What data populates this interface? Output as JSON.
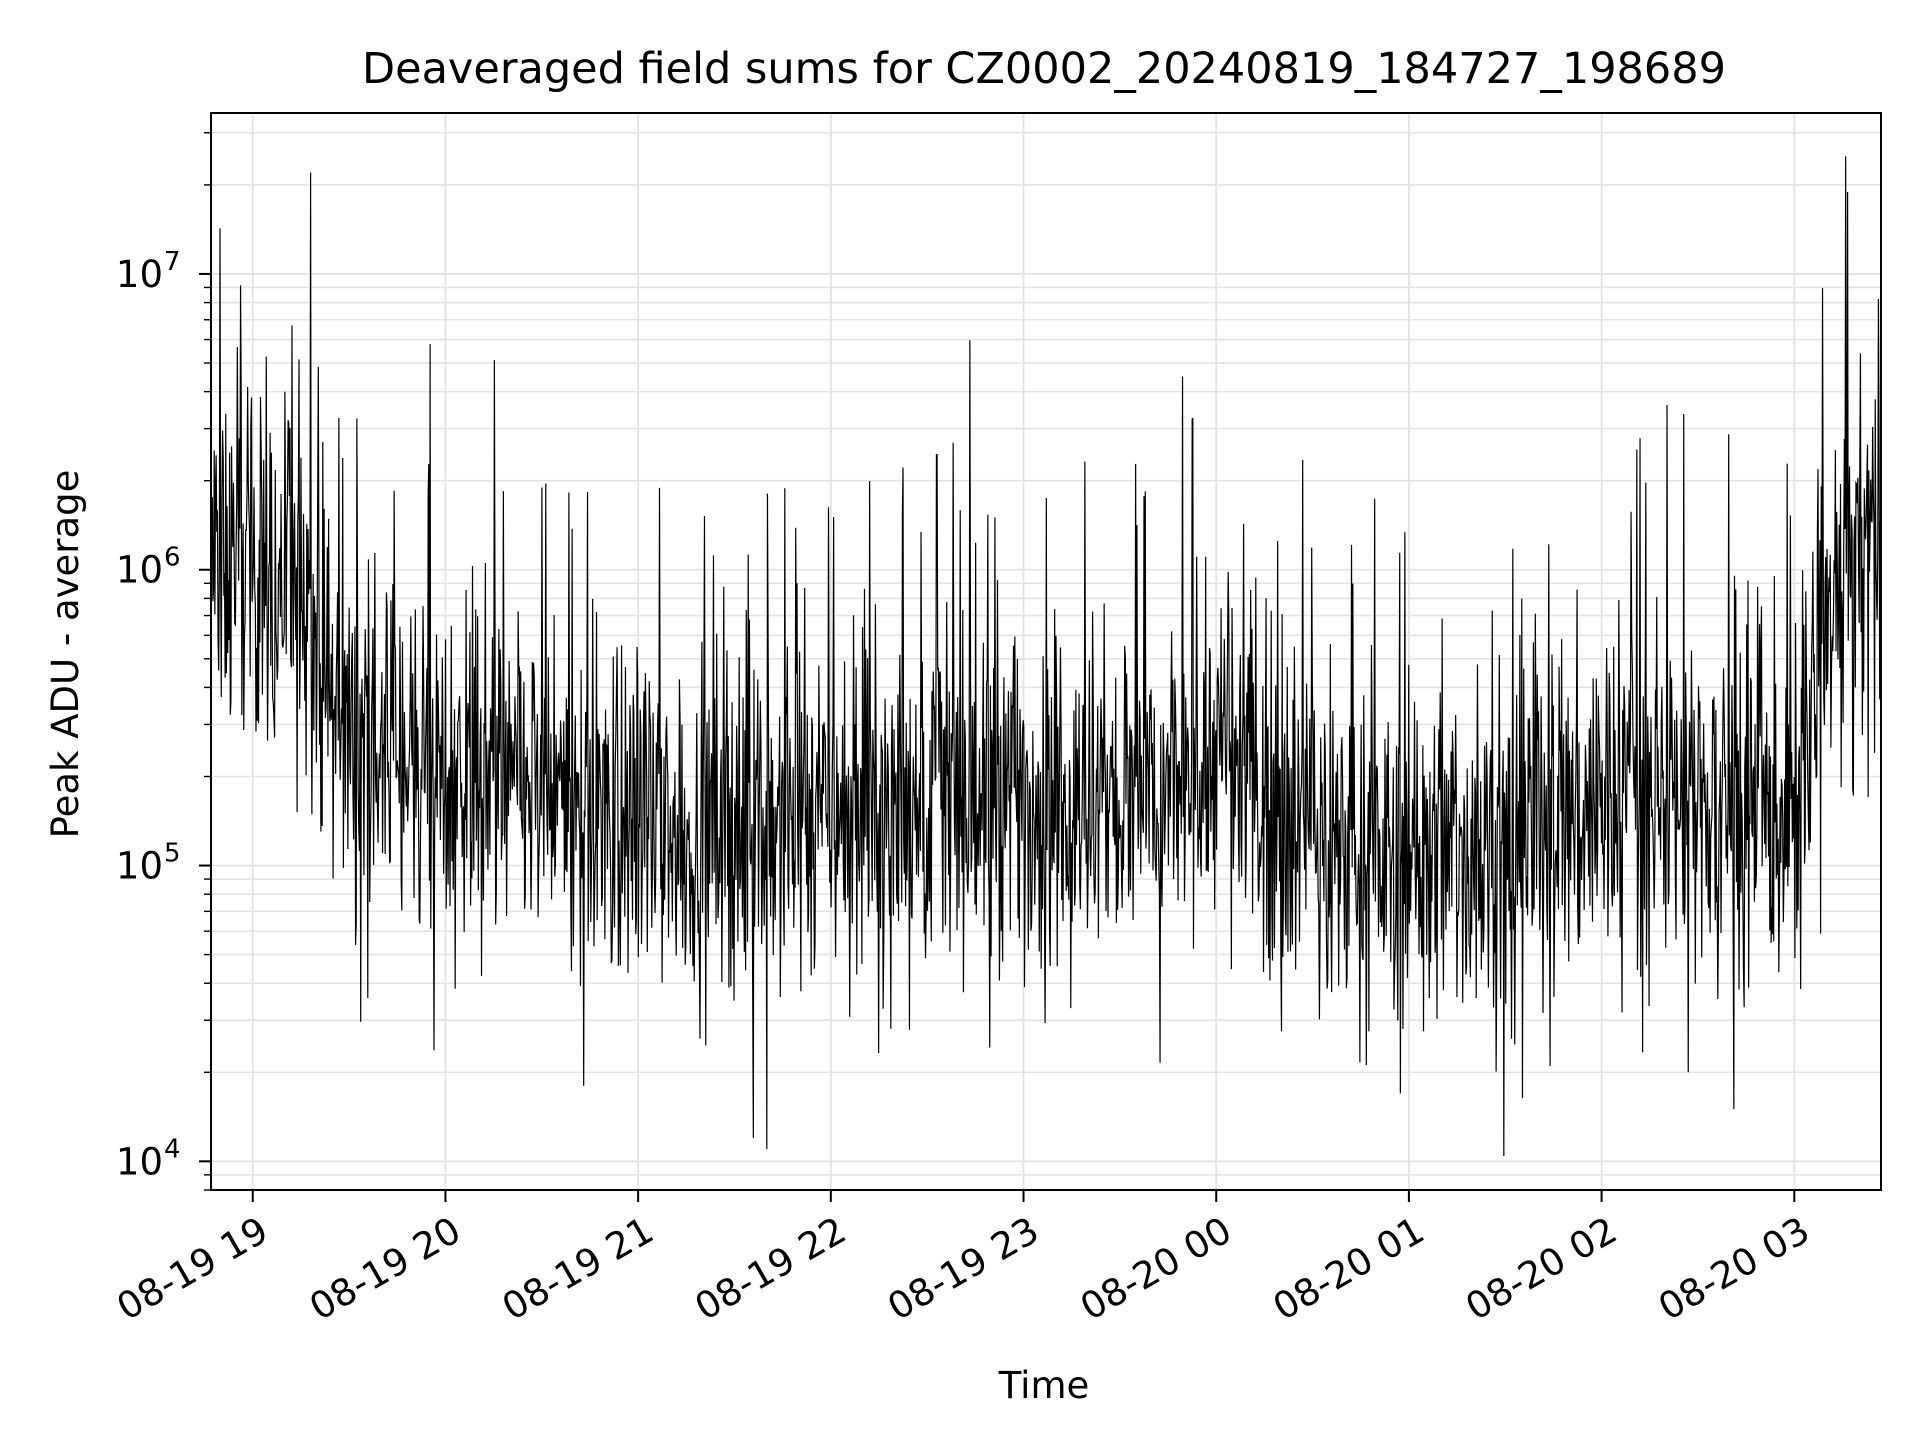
{
  "chart_data": {
    "type": "line",
    "title": "Deaveraged field sums for CZ0002_20240819_184727_198689",
    "xlabel": "Time",
    "ylabel": "Peak ADU - average",
    "yscale": "log",
    "grid": true,
    "legend": "none",
    "line_color": "#000000",
    "xlim": [
      "2024-08-19 18:47",
      "2024-08-20 03:27"
    ],
    "ylim": [
      8000,
      35000000
    ],
    "x_ticks": [
      {
        "t": "2024-08-19 19:00",
        "label": "08-19 19"
      },
      {
        "t": "2024-08-19 20:00",
        "label": "08-19 20"
      },
      {
        "t": "2024-08-19 21:00",
        "label": "08-19 21"
      },
      {
        "t": "2024-08-19 22:00",
        "label": "08-19 22"
      },
      {
        "t": "2024-08-19 23:00",
        "label": "08-19 23"
      },
      {
        "t": "2024-08-20 00:00",
        "label": "08-20 00"
      },
      {
        "t": "2024-08-20 01:00",
        "label": "08-20 01"
      },
      {
        "t": "2024-08-20 02:00",
        "label": "08-20 02"
      },
      {
        "t": "2024-08-20 03:00",
        "label": "08-20 03"
      }
    ],
    "y_ticks": [
      {
        "value": 10000,
        "base": "10",
        "exp": "4"
      },
      {
        "value": 100000,
        "base": "10",
        "exp": "5"
      },
      {
        "value": 1000000,
        "base": "10",
        "exp": "6"
      },
      {
        "value": 10000000,
        "base": "10",
        "exp": "7"
      }
    ],
    "series": [
      {
        "x": [
          "2024-08-19 18:47",
          "2024-08-19 18:55",
          "2024-08-19 19:05",
          "2024-08-19 19:15",
          "2024-08-19 19:25",
          "2024-08-19 19:35",
          "2024-08-19 19:45",
          "2024-08-19 20:00",
          "2024-08-19 20:15",
          "2024-08-19 20:30",
          "2024-08-19 20:45",
          "2024-08-19 21:00",
          "2024-08-19 21:15",
          "2024-08-19 21:30",
          "2024-08-19 21:45",
          "2024-08-19 22:00",
          "2024-08-19 22:15",
          "2024-08-19 22:30",
          "2024-08-19 22:45",
          "2024-08-19 23:00",
          "2024-08-19 23:15",
          "2024-08-19 23:30",
          "2024-08-19 23:45",
          "2024-08-20 00:00",
          "2024-08-20 00:15",
          "2024-08-20 00:30",
          "2024-08-20 00:45",
          "2024-08-20 01:00",
          "2024-08-20 01:15",
          "2024-08-20 01:30",
          "2024-08-20 01:45",
          "2024-08-20 02:00",
          "2024-08-20 02:15",
          "2024-08-20 02:30",
          "2024-08-20 02:45",
          "2024-08-20 03:00",
          "2024-08-20 03:10",
          "2024-08-20 03:20",
          "2024-08-20 03:27"
        ],
        "y": [
          1100000,
          1100000,
          950000,
          800000,
          350000,
          250000,
          250000,
          230000,
          200000,
          170000,
          150000,
          140000,
          120000,
          130000,
          140000,
          150000,
          170000,
          170000,
          160000,
          160000,
          150000,
          160000,
          170000,
          250000,
          170000,
          130000,
          110000,
          100000,
          110000,
          120000,
          140000,
          160000,
          170000,
          170000,
          130000,
          150000,
          600000,
          1100000,
          1400000
        ],
        "noise_log10": 0.55,
        "spikes": [
          {
            "x": "2024-08-19 19:18",
            "y": 22000000
          },
          {
            "x": "2024-08-19 19:11",
            "y": 3200000
          },
          {
            "x": "2024-08-19 19:44",
            "y": 1850000
          },
          {
            "x": "2024-08-19 21:40",
            "y": 11000
          },
          {
            "x": "2024-08-19 20:43",
            "y": 18000
          },
          {
            "x": "2024-08-19 22:33",
            "y": 2450000
          },
          {
            "x": "2024-08-20 00:27",
            "y": 2350000
          },
          {
            "x": "2024-08-20 02:11",
            "y": 2550000
          },
          {
            "x": "2024-08-20 02:27",
            "y": 20000
          },
          {
            "x": "2024-08-20 01:44",
            "y": 21000
          },
          {
            "x": "2024-08-20 03:16",
            "y": 25000000
          }
        ]
      }
    ]
  }
}
